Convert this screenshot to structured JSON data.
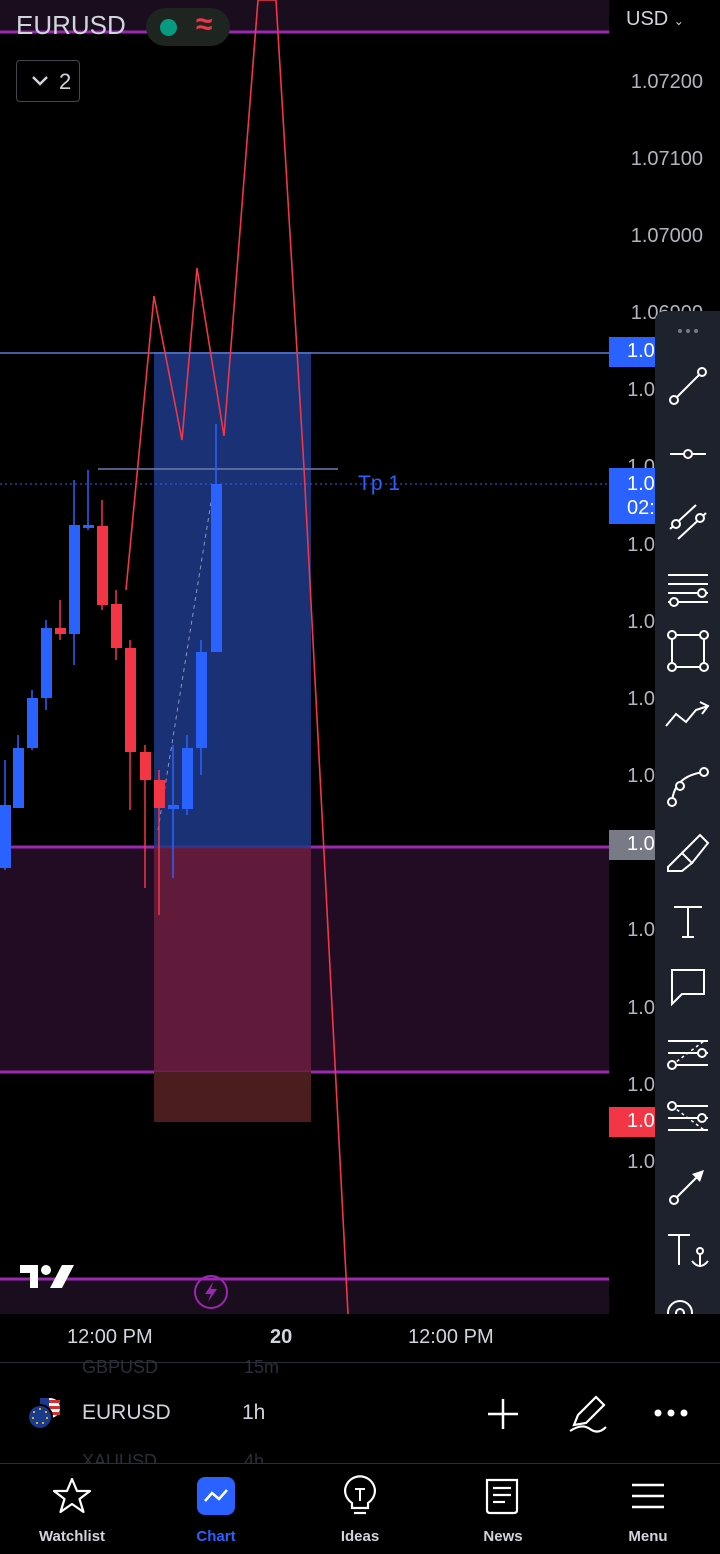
{
  "header": {
    "symbol": "EURUSD",
    "status_wave": "≈",
    "layers_count": "2",
    "currency": "USD"
  },
  "price_axis": {
    "ticks": [
      "1.07200",
      "1.07100",
      "1.07000",
      "1.06900",
      "1.0",
      "1.0",
      "1.0",
      "1.0",
      "1.0",
      "1.0",
      "1.0",
      "1.0",
      "1.0",
      "1.0"
    ],
    "tags": {
      "blue_top": "1.0",
      "current": "1.0",
      "countdown": "02:",
      "gray": "1.0",
      "red": "1.0"
    }
  },
  "chart": {
    "tp_label": "Tp 1",
    "colors": {
      "up": "#2962ff",
      "down": "#f23645",
      "purple_line": "#9c27b0",
      "profit_zone": "#1e3a8a",
      "loss_zone": "#6b1f3f"
    }
  },
  "toolbar": {
    "tools": [
      "trend-line",
      "horizontal-ray",
      "parallel-channel",
      "fib-retracement",
      "rectangle",
      "path",
      "curve",
      "brush",
      "text",
      "callout",
      "fib-extension",
      "fib-channel",
      "arrow",
      "anchored-text",
      "anchored-note"
    ]
  },
  "time_axis": {
    "labels": [
      "12:00 PM",
      "20",
      "12:00 PM"
    ]
  },
  "symbol_bar": {
    "ghost_above_symbol": "GBPUSD",
    "ghost_above_interval": "15m",
    "symbol": "EURUSD",
    "interval": "1h",
    "ghost_below_symbol": "XAUUSD",
    "ghost_below_interval": "4h"
  },
  "bottom_nav": {
    "items": [
      {
        "label": "Watchlist",
        "icon": "star-icon"
      },
      {
        "label": "Chart",
        "icon": "chart-icon"
      },
      {
        "label": "Ideas",
        "icon": "lightbulb-icon"
      },
      {
        "label": "News",
        "icon": "news-icon"
      },
      {
        "label": "Menu",
        "icon": "menu-icon"
      }
    ]
  }
}
